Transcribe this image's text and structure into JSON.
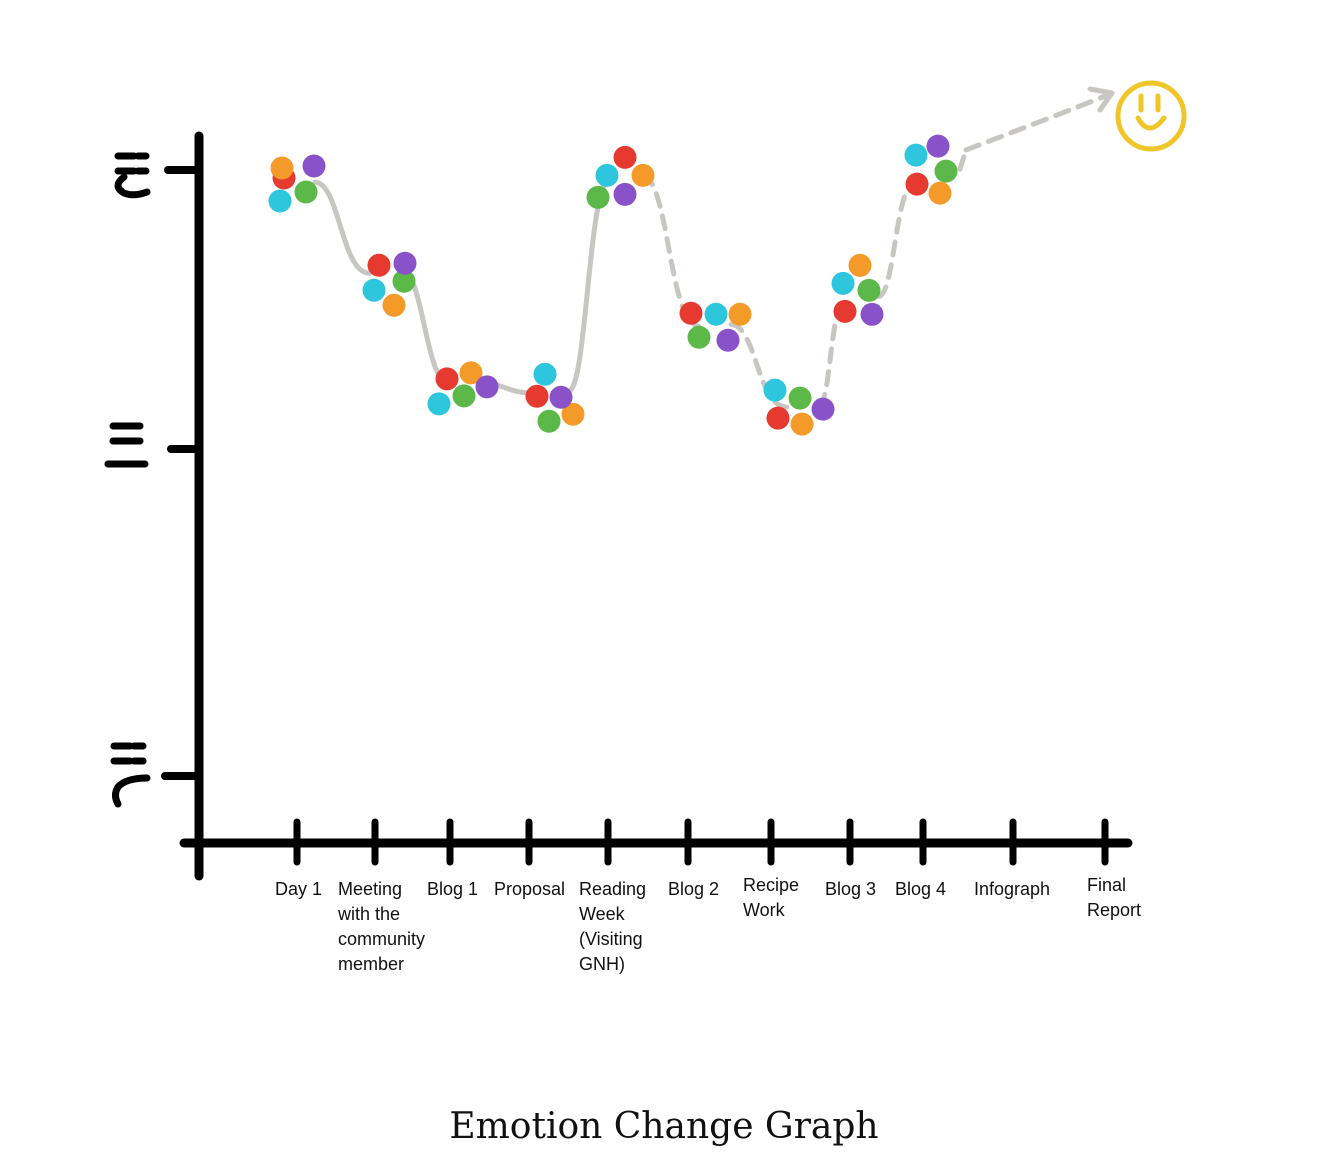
{
  "chart_data": {
    "type": "line",
    "title": "Emotion Change Graph",
    "xlabel": "",
    "ylabel": "",
    "y_levels": [
      "sad",
      "neutral",
      "happy"
    ],
    "categories": [
      "Day 1",
      "Meeting with the community member",
      "Blog 1",
      "Proposal",
      "Reading Week (Visiting GNH)",
      "Blog 2",
      "Recipe Work",
      "Blog 3",
      "Blog 4",
      "Infograph",
      "Final Report"
    ],
    "category_lines": [
      [
        "Day 1"
      ],
      [
        "Meeting",
        "with the",
        "community",
        "member"
      ],
      [
        "Blog 1"
      ],
      [
        "Proposal"
      ],
      [
        "Reading",
        "Week",
        "(Visiting",
        "GNH)"
      ],
      [
        "Blog 2"
      ],
      [
        "Recipe",
        "Work"
      ],
      [
        "Blog 3"
      ],
      [
        "Blog 4"
      ],
      [
        "Infograph"
      ],
      [
        "Final",
        "Report"
      ]
    ],
    "values": [
      0.95,
      0.63,
      0.23,
      0.2,
      0.97,
      0.44,
      0.15,
      0.54,
      0.96,
      null,
      null
    ],
    "ylim": [
      -0.85,
      1.0
    ],
    "legend": "none",
    "grid": false,
    "trend": "future emotion projected to continue rising toward happy"
  },
  "colors": {
    "axis": "#000000",
    "path": "#c8c6c2",
    "smiley": "#f0c52a",
    "dots": [
      "#e63a30",
      "#2dc6dc",
      "#5db84a",
      "#f39a28",
      "#8a52c8"
    ]
  },
  "icons": {
    "happy": "happy-face-icon",
    "neutral": "neutral-face-icon",
    "sad": "sad-face-icon",
    "target": "smiley-goal-icon"
  }
}
